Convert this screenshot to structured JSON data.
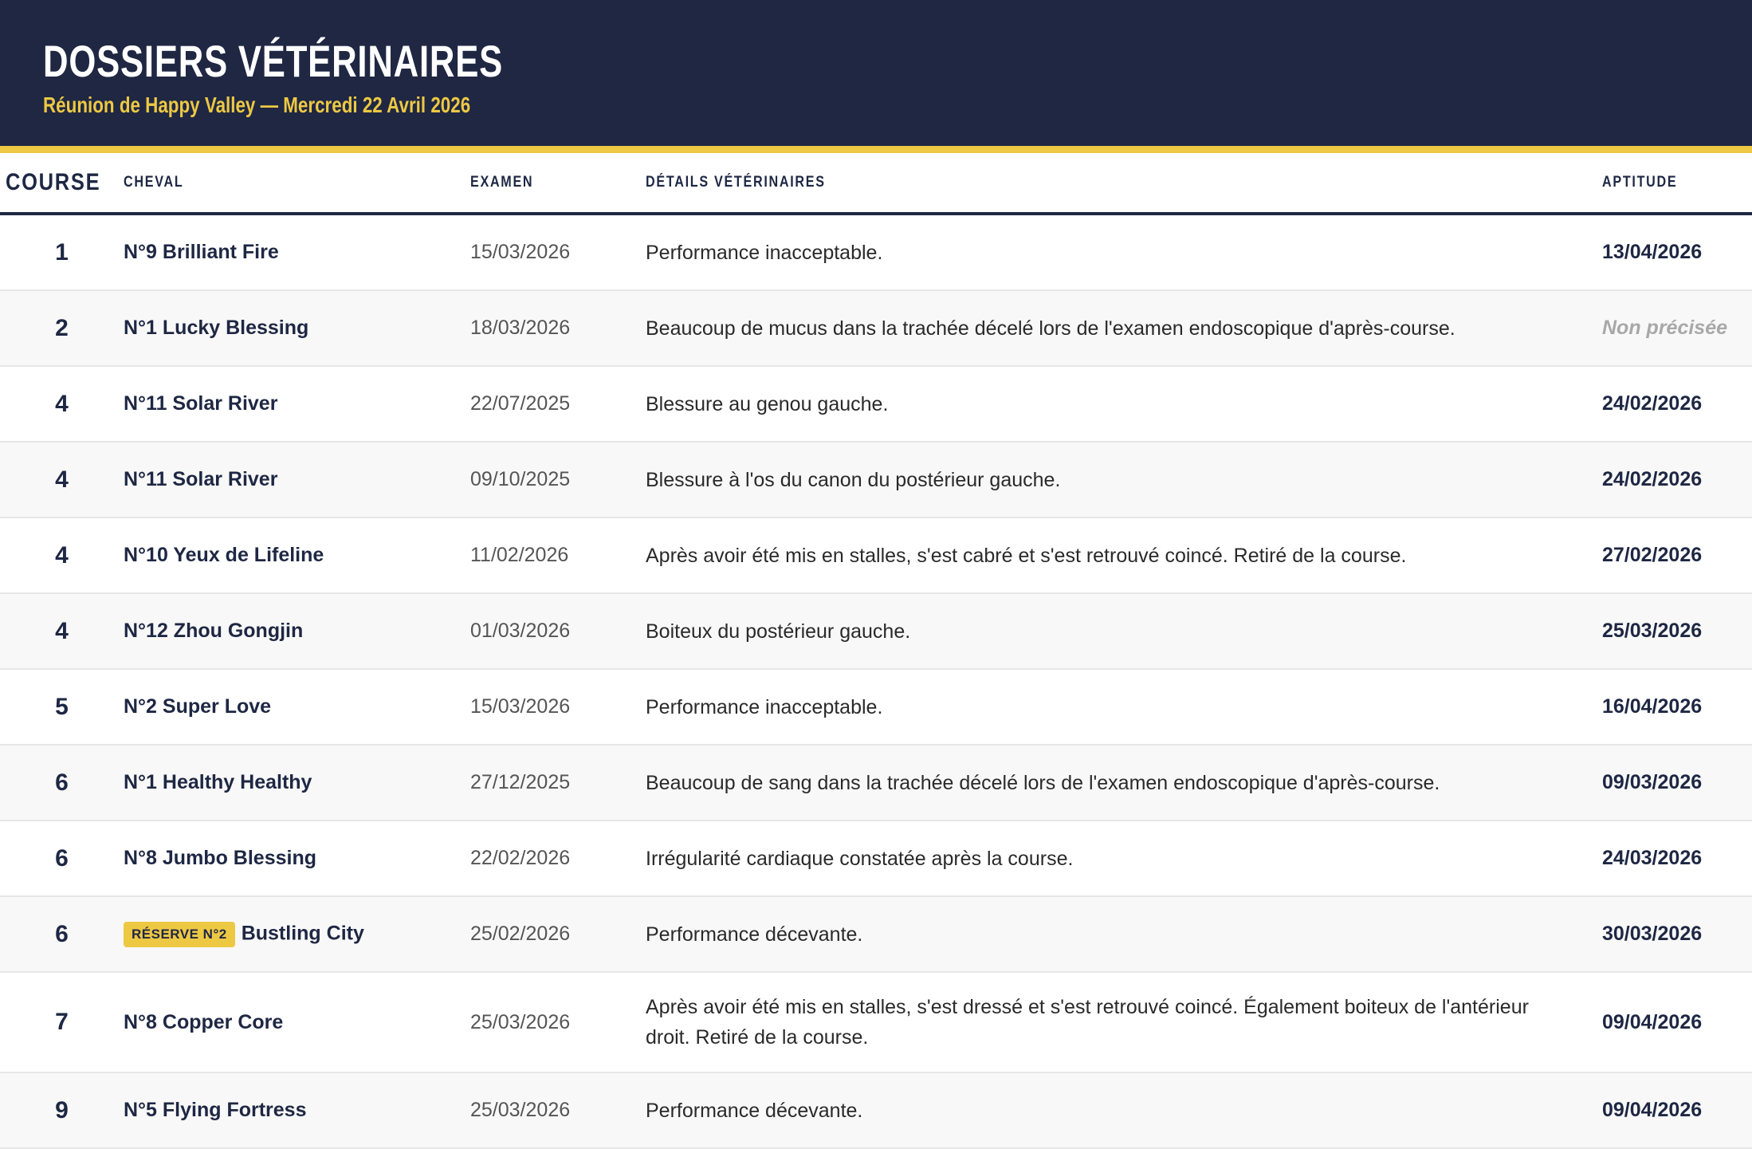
{
  "header": {
    "title": "DOSSIERS VÉTÉRINAIRES",
    "subtitle": "Réunion de Happy Valley — Mercredi 22 Avril 2026"
  },
  "colors": {
    "navy": "#1f2743",
    "accent": "#edc843"
  },
  "table": {
    "columns": [
      "COURSE",
      "CHEVAL",
      "EXAMEN",
      "DÉTAILS VÉTÉRINAIRES",
      "APTITUDE"
    ],
    "rows": [
      {
        "course": "1",
        "badge": "",
        "horse": "N°9 Brilliant Fire",
        "exam": "15/03/2026",
        "details": "Performance inacceptable.",
        "aptitude": "13/04/2026"
      },
      {
        "course": "2",
        "badge": "",
        "horse": "N°1 Lucky Blessing",
        "exam": "18/03/2026",
        "details": "Beaucoup de mucus dans la trachée décelé lors de l'examen endoscopique d'après-course.",
        "aptitude": "Non précisée"
      },
      {
        "course": "4",
        "badge": "",
        "horse": "N°11 Solar River",
        "exam": "22/07/2025",
        "details": "Blessure au genou gauche.",
        "aptitude": "24/02/2026"
      },
      {
        "course": "4",
        "badge": "",
        "horse": "N°11 Solar River",
        "exam": "09/10/2025",
        "details": "Blessure à l'os du canon du postérieur gauche.",
        "aptitude": "24/02/2026"
      },
      {
        "course": "4",
        "badge": "",
        "horse": "N°10 Yeux de Lifeline",
        "exam": "11/02/2026",
        "details": "Après avoir été mis en stalles, s'est cabré et s'est retrouvé coincé. Retiré de la course.",
        "aptitude": "27/02/2026"
      },
      {
        "course": "4",
        "badge": "",
        "horse": "N°12 Zhou Gongjin",
        "exam": "01/03/2026",
        "details": "Boiteux du postérieur gauche.",
        "aptitude": "25/03/2026"
      },
      {
        "course": "5",
        "badge": "",
        "horse": "N°2 Super Love",
        "exam": "15/03/2026",
        "details": "Performance inacceptable.",
        "aptitude": "16/04/2026"
      },
      {
        "course": "6",
        "badge": "",
        "horse": "N°1 Healthy Healthy",
        "exam": "27/12/2025",
        "details": "Beaucoup de sang dans la trachée décelé lors de l'examen endoscopique d'après-course.",
        "aptitude": "09/03/2026"
      },
      {
        "course": "6",
        "badge": "",
        "horse": "N°8 Jumbo Blessing",
        "exam": "22/02/2026",
        "details": "Irrégularité cardiaque constatée après la course.",
        "aptitude": "24/03/2026"
      },
      {
        "course": "6",
        "badge": "RÉSERVE N°2",
        "horse": "Bustling City",
        "exam": "25/02/2026",
        "details": "Performance décevante.",
        "aptitude": "30/03/2026"
      },
      {
        "course": "7",
        "badge": "",
        "horse": "N°8 Copper Core",
        "exam": "25/03/2026",
        "details": "Après avoir été mis en stalles, s'est dressé et s'est retrouvé coincé. Également boiteux de l'antérieur droit. Retiré de la course.",
        "aptitude": "09/04/2026"
      },
      {
        "course": "9",
        "badge": "",
        "horse": "N°5 Flying Fortress",
        "exam": "25/03/2026",
        "details": "Performance décevante.",
        "aptitude": "09/04/2026"
      }
    ]
  }
}
